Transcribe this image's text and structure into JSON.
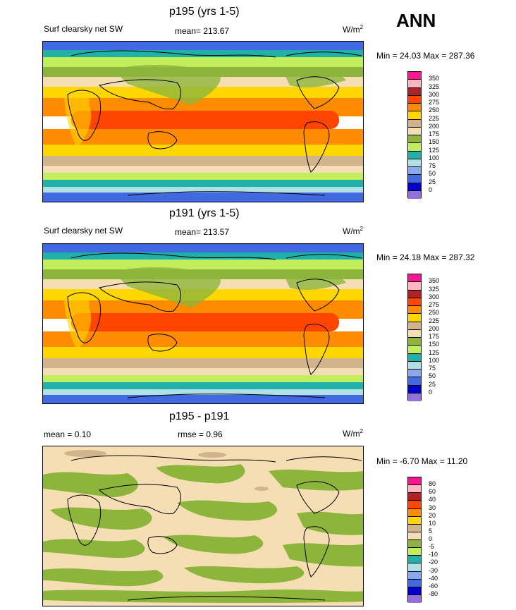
{
  "season": "ANN",
  "panels": [
    {
      "title": "p195 (yrs 1-5)",
      "left_label": "Surf clearsky net SW",
      "mean_text": "mean= 213.67",
      "units": "W/m",
      "units_sup": "2",
      "minmax": "Min =  24.03 Max = 287.36",
      "levels": [
        "350",
        "325",
        "300",
        "275",
        "250",
        "225",
        "200",
        "175",
        "150",
        "125",
        "100",
        "75",
        "50",
        "25",
        "0"
      ]
    },
    {
      "title": "p191 (yrs 1-5)",
      "left_label": "Surf clearsky net SW",
      "mean_text": "mean= 213.57",
      "units": "W/m",
      "units_sup": "2",
      "minmax": "Min =  24.18 Max = 287.32",
      "levels": [
        "350",
        "325",
        "300",
        "275",
        "250",
        "225",
        "200",
        "175",
        "150",
        "125",
        "100",
        "75",
        "50",
        "25",
        "0"
      ]
    },
    {
      "title": "p195 - p191",
      "mean_text": "mean =   0.10",
      "rmse_text": "rmse =   0.96",
      "units": "W/m",
      "units_sup": "2",
      "minmax": "Min =  -6.70 Max =  11.20",
      "levels": [
        "80",
        "60",
        "40",
        "30",
        "20",
        "10",
        "5",
        "0",
        "-5",
        "-10",
        "-20",
        "-30",
        "-40",
        "-60",
        "-80"
      ]
    }
  ],
  "colors": {
    "abs_scale": [
      "#ff1493",
      "#ffb6c1",
      "#b22222",
      "#ff4500",
      "#ff8c00",
      "#ffd700",
      "#d2b48c",
      "#f5deb3",
      "#8db53c",
      "#c1ef5b",
      "#20b2aa",
      "#b0e0e6",
      "#87a9f0",
      "#4169e1",
      "#0000cd",
      "#9370db"
    ],
    "diff_scale": [
      "#ff1493",
      "#ffb6c1",
      "#b22222",
      "#ff4500",
      "#ff8c00",
      "#ffd700",
      "#d2b48c",
      "#f5deb3",
      "#8db53c",
      "#c1ef5b",
      "#20b2aa",
      "#b0e0e6",
      "#87a9f0",
      "#4169e1",
      "#0000cd",
      "#9370db"
    ]
  },
  "chart_data": [
    {
      "type": "heatmap",
      "title": "p195 (yrs 1-5)",
      "variable": "Surf clearsky net SW",
      "units": "W/m2",
      "mean": 213.67,
      "min": 24.03,
      "max": 287.36,
      "contour_levels": [
        0,
        25,
        50,
        75,
        100,
        125,
        150,
        175,
        200,
        225,
        250,
        275,
        300,
        325,
        350
      ],
      "zonal_pattern": {
        "lat": [
          90,
          70,
          60,
          50,
          40,
          30,
          20,
          10,
          0,
          -10,
          -20,
          -30,
          -40,
          -50,
          -60,
          -70,
          -90
        ],
        "approx_value": [
          40,
          90,
          130,
          160,
          200,
          230,
          260,
          275,
          270,
          275,
          265,
          240,
          200,
          170,
          120,
          60,
          30
        ]
      }
    },
    {
      "type": "heatmap",
      "title": "p191 (yrs 1-5)",
      "variable": "Surf clearsky net SW",
      "units": "W/m2",
      "mean": 213.57,
      "min": 24.18,
      "max": 287.32,
      "contour_levels": [
        0,
        25,
        50,
        75,
        100,
        125,
        150,
        175,
        200,
        225,
        250,
        275,
        300,
        325,
        350
      ]
    },
    {
      "type": "heatmap",
      "title": "p195 - p191",
      "units": "W/m2",
      "mean": 0.1,
      "rmse": 0.96,
      "min": -6.7,
      "max": 11.2,
      "contour_levels": [
        -80,
        -60,
        -40,
        -30,
        -20,
        -10,
        -5,
        0,
        5,
        10,
        20,
        30,
        40,
        60,
        80
      ]
    }
  ]
}
